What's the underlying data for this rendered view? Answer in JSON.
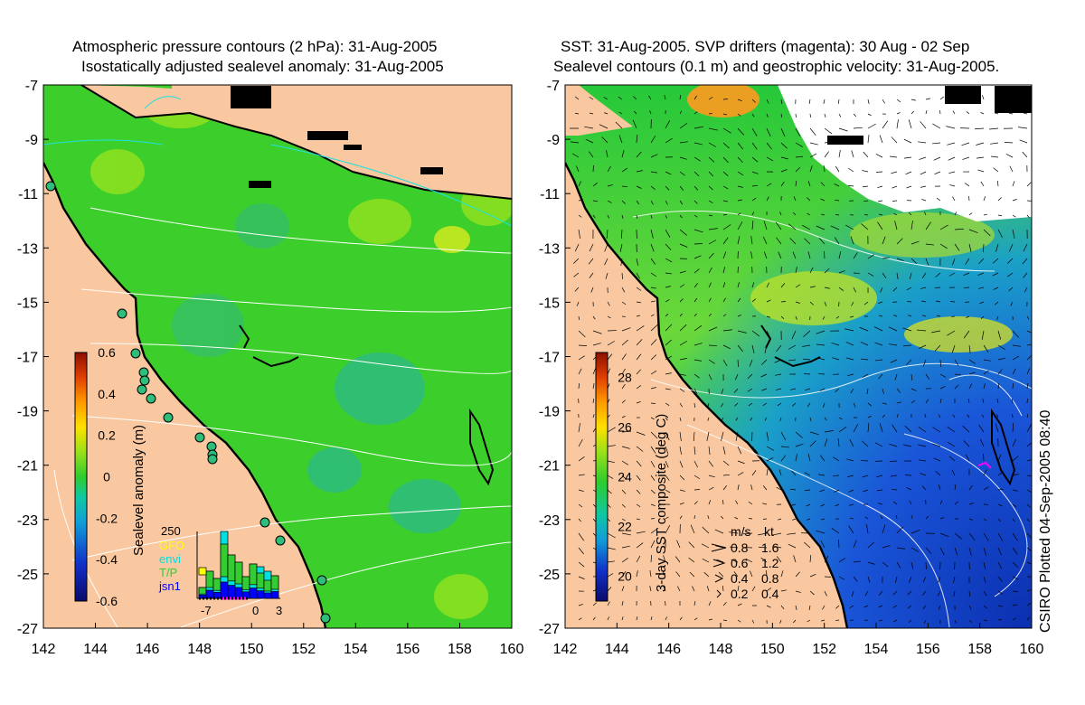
{
  "left_panel": {
    "title_line1": "Atmospheric pressure contours (2 hPa): 31-Aug-2005",
    "title_line2": "Isostatically adjusted sealevel anomaly: 31-Aug-2005",
    "colorbar": {
      "label": "Sealevel anomaly (m)",
      "ticks": [
        "0.6",
        "0.4",
        "0.2",
        "0",
        "-0.2",
        "-0.4",
        "-0.6"
      ],
      "range": [
        -0.6,
        0.6
      ]
    },
    "inset": {
      "ymax_label": "250",
      "legend": [
        {
          "label": "GFO",
          "color": "#ffff00"
        },
        {
          "label": "envi",
          "color": "#00e0e0"
        },
        {
          "label": "T/P",
          "color": "#33cc33"
        },
        {
          "label": "jsn1",
          "color": "#0000ff"
        }
      ],
      "xticks": [
        "-7",
        "0",
        "3"
      ]
    }
  },
  "right_panel": {
    "title_line1": "SST: 31-Aug-2005. SVP drifters (magenta): 30 Aug - 02 Sep",
    "title_line2": "Sealevel contours (0.1 m) and geostrophic velocity: 31-Aug-2005.",
    "colorbar": {
      "label": "3-day SST composite (deg C)",
      "ticks": [
        "28",
        "26",
        "24",
        "22",
        "20"
      ],
      "range": [
        19,
        29
      ]
    },
    "velocity_legend": {
      "header_ms": "m/s",
      "header_kt": "kt",
      "rows": [
        {
          "ms": "0.8",
          "kt": "1.6"
        },
        {
          "ms": "0.6",
          "kt": "1.2"
        },
        {
          "ms": "0.4",
          "kt": "0.8"
        },
        {
          "ms": "0.2",
          "kt": "0.4"
        }
      ]
    }
  },
  "axes": {
    "lat_ticks": [
      "-7",
      "-9",
      "-11",
      "-13",
      "-15",
      "-17",
      "-19",
      "-21",
      "-23",
      "-25",
      "-27"
    ],
    "lon_ticks": [
      "142",
      "144",
      "146",
      "148",
      "150",
      "152",
      "154",
      "156",
      "158",
      "160"
    ],
    "lat_range": [
      -27,
      -7
    ],
    "lon_range": [
      142,
      160
    ]
  },
  "credit": "CSIRO Plotted 04-Sep-2005 08:40",
  "colors": {
    "land": "#f9c8a0",
    "ocean_sla": "#3ccf2c",
    "coast": "#000000",
    "contour": "#ffffff",
    "drifter": "#ff00ff"
  }
}
